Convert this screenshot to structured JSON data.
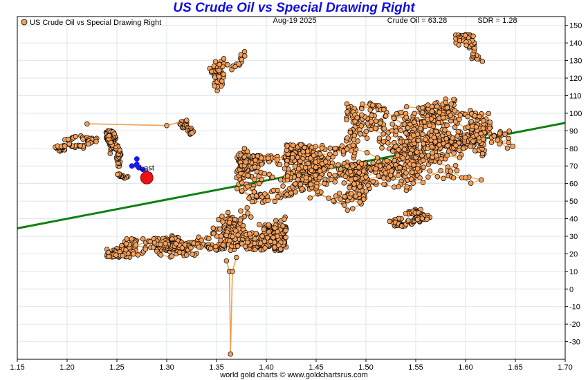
{
  "chart_data": {
    "type": "scatter",
    "title": "US Crude Oil vs Special Drawing Right",
    "legend": {
      "label": "US Crude Oil vs Special Drawing Right",
      "placement": "top-left"
    },
    "date": "Aug-19  2025",
    "crude_readout": "Crude Oil = 63.28",
    "sdr_readout": "SDR = 1.28",
    "last_label": "Last",
    "footer": "world gold charts © www.goldchartsrus.com",
    "xlim": [
      1.15,
      1.7
    ],
    "ylim": [
      -40,
      155
    ],
    "x_ticks": [
      1.15,
      1.2,
      1.25,
      1.3,
      1.35,
      1.4,
      1.45,
      1.5,
      1.55,
      1.6,
      1.65,
      1.7
    ],
    "x_tick_labels": [
      "1.15",
      "1.20",
      "1.25",
      "1.30",
      "1.35",
      "1.40",
      "1.45",
      "1.50",
      "1.55",
      "1.60",
      "1.65",
      "1.70"
    ],
    "y_ticks": [
      -30,
      -20,
      -10,
      0,
      10,
      20,
      30,
      40,
      50,
      60,
      70,
      80,
      90,
      100,
      110,
      120,
      130,
      140,
      150
    ],
    "y_tick_labels": [
      "-30",
      "-20",
      "-10",
      "0",
      "10",
      "20",
      "30",
      "40",
      "50",
      "60",
      "70",
      "80",
      "90",
      "100",
      "110",
      "120",
      "130",
      "140",
      "150"
    ],
    "grid": true,
    "colors": {
      "points": "#f4a05a",
      "point_edge": "#000000",
      "path": "#f0a050",
      "trend": "#108010",
      "recent": "#1a1aee",
      "last": "#ee1111",
      "title": "#1010e0"
    },
    "trend_line": {
      "x": [
        1.15,
        1.7
      ],
      "y": [
        34.5,
        94.5
      ]
    },
    "last_point": {
      "x": 1.28,
      "y": 63.28
    },
    "recent_points": [
      {
        "x": 1.27,
        "y": 74
      },
      {
        "x": 1.27,
        "y": 71
      },
      {
        "x": 1.265,
        "y": 70
      },
      {
        "x": 1.272,
        "y": 69
      },
      {
        "x": 1.276,
        "y": 68
      },
      {
        "x": 1.28,
        "y": 66
      },
      {
        "x": 1.283,
        "y": 65
      },
      {
        "x": 1.28,
        "y": 63.28
      }
    ],
    "clusters": [
      {
        "x": [
          1.23,
          1.255
        ],
        "y": [
          66,
          90
        ],
        "n": 150,
        "path": true
      },
      {
        "x": [
          1.17,
          1.23
        ],
        "y": [
          78,
          92
        ],
        "n": 70,
        "path": true
      },
      {
        "x": [
          1.305,
          1.33
        ],
        "y": [
          88,
          102
        ],
        "n": 30,
        "path": true
      },
      {
        "x": [
          1.33,
          1.38
        ],
        "y": [
          100,
          140
        ],
        "n": 60,
        "path": true
      },
      {
        "x": [
          1.24,
          1.36
        ],
        "y": [
          18,
          36
        ],
        "n": 260,
        "path": true
      },
      {
        "x": [
          1.34,
          1.42
        ],
        "y": [
          22,
          62
        ],
        "n": 320,
        "path": true
      },
      {
        "x": [
          1.37,
          1.5
        ],
        "y": [
          38,
          76
        ],
        "n": 420,
        "path": true
      },
      {
        "x": [
          1.42,
          1.56
        ],
        "y": [
          44,
          82
        ],
        "n": 380,
        "path": true
      },
      {
        "x": [
          1.48,
          1.62
        ],
        "y": [
          60,
          106
        ],
        "n": 420,
        "path": true
      },
      {
        "x": [
          1.54,
          1.65
        ],
        "y": [
          80,
          122
        ],
        "n": 230,
        "path": true
      },
      {
        "x": [
          1.59,
          1.65
        ],
        "y": [
          118,
          145
        ],
        "n": 60,
        "path": true
      },
      {
        "x": [
          1.5,
          1.57
        ],
        "y": [
          34,
          46
        ],
        "n": 90,
        "path": true
      },
      {
        "x": [
          1.36,
          1.4
        ],
        "y": [
          60,
          88
        ],
        "n": 70,
        "path": true
      },
      {
        "x": [
          1.25,
          1.27
        ],
        "y": [
          60,
          68
        ],
        "n": 15,
        "path": true
      }
    ],
    "spike_path": [
      [
        1.36,
        16
      ],
      [
        1.363,
        10
      ],
      [
        1.364,
        -37
      ],
      [
        1.366,
        10
      ],
      [
        1.37,
        18
      ]
    ],
    "link_path": [
      [
        1.22,
        94
      ],
      [
        1.3,
        93
      ],
      [
        1.32,
        96
      ]
    ]
  }
}
